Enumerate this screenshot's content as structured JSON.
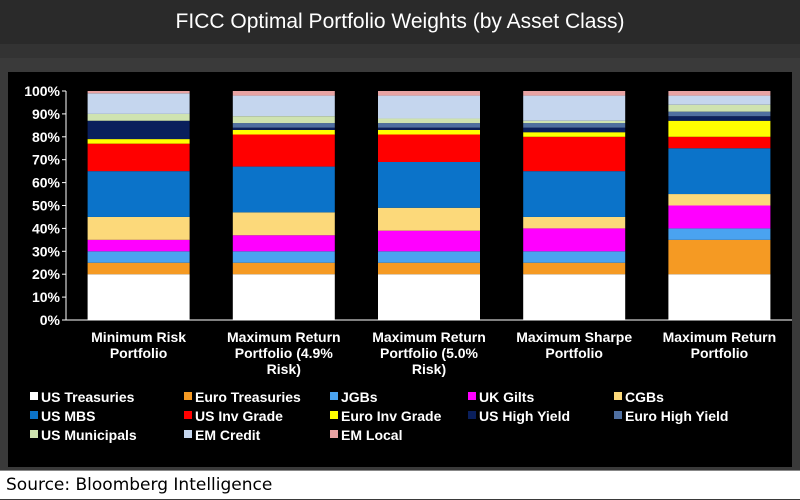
{
  "title": "FICC Optimal Portfolio Weights (by Asset Class)",
  "source": "Source: Bloomberg Intelligence",
  "chart_data": {
    "type": "bar",
    "stacked": true,
    "ylim": [
      0,
      100
    ],
    "y_ticks": [
      "0%",
      "10%",
      "20%",
      "30%",
      "40%",
      "50%",
      "60%",
      "70%",
      "80%",
      "90%",
      "100%"
    ],
    "categories": [
      [
        "Minimum Risk",
        "Portfolio"
      ],
      [
        "Maximum Return",
        "Portfolio (4.9%",
        "Risk)"
      ],
      [
        "Maximum Return",
        "Portfolio (5.0%",
        "Risk)"
      ],
      [
        "Maximum Sharpe",
        "Portfolio"
      ],
      [
        "Maximum Return",
        "Portfolio"
      ]
    ],
    "series": [
      {
        "name": "US Treasuries",
        "color": "#ffffff",
        "values": [
          20,
          20,
          20,
          20,
          20
        ]
      },
      {
        "name": "Euro Treasuries",
        "color": "#f59a23",
        "values": [
          5,
          5,
          5,
          5,
          15
        ]
      },
      {
        "name": "JGBs",
        "color": "#4aa3f0",
        "values": [
          5,
          5,
          5,
          5,
          5
        ]
      },
      {
        "name": "UK Gilts",
        "color": "#ff00ff",
        "values": [
          5,
          7,
          9,
          10,
          10
        ]
      },
      {
        "name": "CGBs",
        "color": "#fcd97a",
        "values": [
          10,
          10,
          10,
          5,
          5
        ]
      },
      {
        "name": "US MBS",
        "color": "#0b73c9",
        "values": [
          20,
          20,
          20,
          20,
          20
        ]
      },
      {
        "name": "US Inv Grade",
        "color": "#ff0000",
        "values": [
          12,
          14,
          12,
          15,
          5
        ]
      },
      {
        "name": "Euro Inv Grade",
        "color": "#ffff00",
        "values": [
          2,
          2,
          2,
          2,
          7
        ]
      },
      {
        "name": "US High Yield",
        "color": "#0a1f5c",
        "values": [
          8,
          1,
          1,
          2,
          2
        ]
      },
      {
        "name": "Euro High Yield",
        "color": "#4f6fa0",
        "values": [
          0,
          2,
          2,
          2,
          2
        ]
      },
      {
        "name": "US Municipals",
        "color": "#cfe3b0",
        "values": [
          3,
          3,
          2,
          1,
          3
        ]
      },
      {
        "name": "EM Credit",
        "color": "#c5d6ee",
        "values": [
          9,
          9,
          10,
          11,
          4
        ]
      },
      {
        "name": "EM Local",
        "color": "#e8a3a3",
        "values": [
          1,
          2,
          2,
          2,
          2
        ]
      }
    ]
  }
}
